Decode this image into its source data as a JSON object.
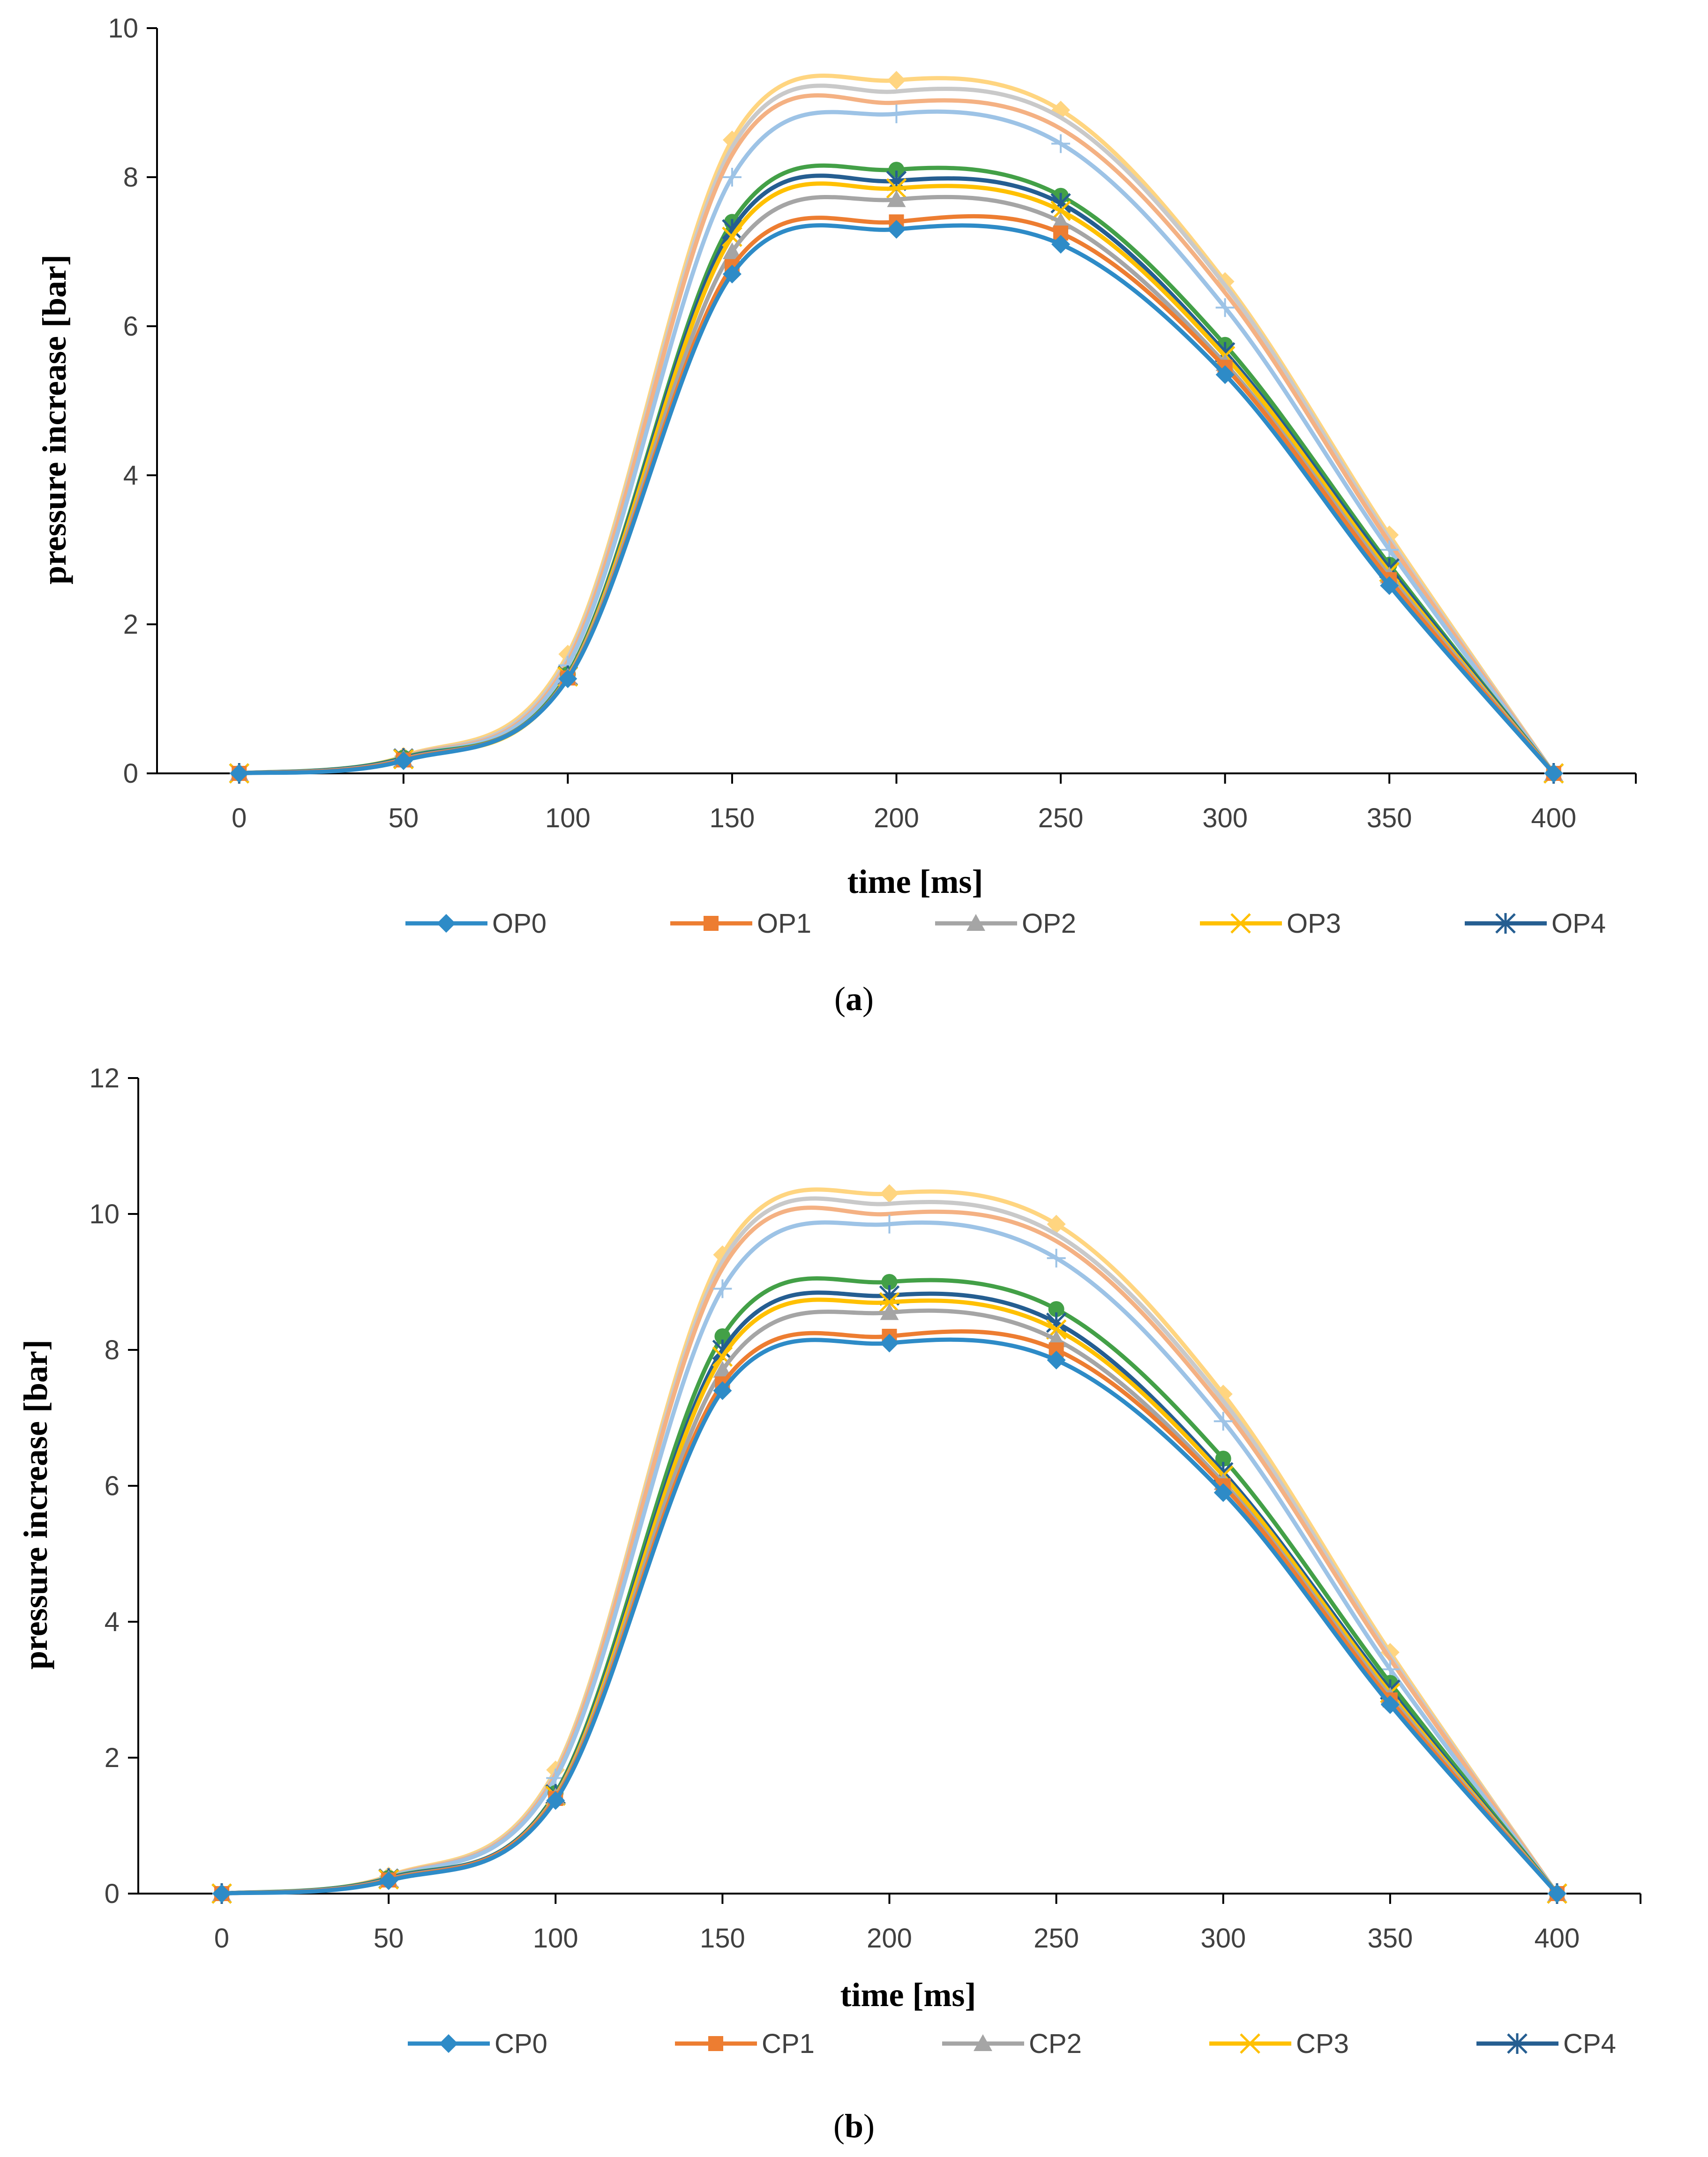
{
  "chart_data": [
    {
      "type": "line",
      "panel_label": "a",
      "xlabel": "time [ms]",
      "ylabel": "pressure increase [bar]",
      "xlim": [
        -25,
        425
      ],
      "ylim": [
        0,
        10
      ],
      "x_ticks": [
        "0",
        "50",
        "100",
        "150",
        "200",
        "250",
        "300",
        "350",
        "400"
      ],
      "y_ticks": [
        "0",
        "2",
        "4",
        "6",
        "8",
        "10"
      ],
      "x": [
        0,
        50,
        100,
        150,
        200,
        250,
        300,
        350,
        400
      ],
      "legend_position": "bottom",
      "legend": [
        "OP0",
        "OP1",
        "OP2",
        "OP3",
        "OP4"
      ],
      "series": [
        {
          "name": "OP0",
          "color": "#2E8BC7",
          "marker": "diamond",
          "values": [
            0,
            0.17,
            1.27,
            6.7,
            7.3,
            7.1,
            5.35,
            2.52,
            0
          ]
        },
        {
          "name": "OP1",
          "color": "#ED7D31",
          "marker": "square",
          "values": [
            0,
            0.18,
            1.28,
            6.8,
            7.4,
            7.25,
            5.45,
            2.6,
            0
          ]
        },
        {
          "name": "OP2",
          "color": "#A5A5A5",
          "marker": "triangle",
          "values": [
            0,
            0.19,
            1.29,
            7.0,
            7.7,
            7.4,
            5.5,
            2.65,
            0
          ]
        },
        {
          "name": "OP3",
          "color": "#FFC000",
          "marker": "x",
          "values": [
            0,
            0.19,
            1.3,
            7.2,
            7.85,
            7.55,
            5.6,
            2.7,
            0
          ]
        },
        {
          "name": "OP4",
          "color": "#255E91",
          "marker": "star",
          "values": [
            0,
            0.2,
            1.31,
            7.3,
            7.95,
            7.65,
            5.65,
            2.75,
            0
          ]
        },
        {
          "color": "#43A047",
          "marker": "circle",
          "values": [
            0,
            0.21,
            1.33,
            7.4,
            8.1,
            7.75,
            5.75,
            2.8,
            0
          ]
        },
        {
          "color": "#9DC3E6",
          "marker": "plus",
          "values": [
            0,
            0.21,
            1.45,
            8.0,
            8.85,
            8.45,
            6.25,
            3.0,
            0
          ]
        },
        {
          "color": "#F4B183",
          "marker": "none",
          "values": [
            0,
            0.22,
            1.5,
            8.3,
            9.0,
            8.65,
            6.45,
            3.1,
            0
          ]
        },
        {
          "color": "#C9C9C9",
          "marker": "none",
          "values": [
            0,
            0.22,
            1.55,
            8.4,
            9.15,
            8.8,
            6.55,
            3.15,
            0
          ]
        },
        {
          "color": "#FFD580",
          "marker": "diamond",
          "values": [
            0,
            0.23,
            1.6,
            8.5,
            9.3,
            8.9,
            6.6,
            3.2,
            0
          ]
        }
      ]
    },
    {
      "type": "line",
      "panel_label": "b",
      "xlabel": "time [ms]",
      "ylabel": "pressure increase [bar]",
      "xlim": [
        -25,
        425
      ],
      "ylim": [
        0,
        12
      ],
      "x_ticks": [
        "0",
        "50",
        "100",
        "150",
        "200",
        "250",
        "300",
        "350",
        "400"
      ],
      "y_ticks": [
        "0",
        "2",
        "4",
        "6",
        "8",
        "10",
        "12"
      ],
      "x": [
        0,
        50,
        100,
        150,
        200,
        250,
        300,
        350,
        400
      ],
      "legend_position": "bottom",
      "legend": [
        "CP0",
        "CP1",
        "CP2",
        "CP3",
        "CP4"
      ],
      "series": [
        {
          "name": "CP0",
          "color": "#2E8BC7",
          "marker": "diamond",
          "values": [
            0,
            0.19,
            1.37,
            7.4,
            8.1,
            7.85,
            5.9,
            2.78,
            0
          ]
        },
        {
          "name": "CP1",
          "color": "#ED7D31",
          "marker": "square",
          "values": [
            0,
            0.2,
            1.4,
            7.5,
            8.2,
            8.0,
            6.0,
            2.85,
            0
          ]
        },
        {
          "name": "CP2",
          "color": "#A5A5A5",
          "marker": "triangle",
          "values": [
            0,
            0.21,
            1.42,
            7.7,
            8.55,
            8.15,
            6.05,
            2.9,
            0
          ]
        },
        {
          "name": "CP3",
          "color": "#FFC000",
          "marker": "x",
          "values": [
            0,
            0.21,
            1.44,
            7.9,
            8.7,
            8.3,
            6.15,
            2.95,
            0
          ]
        },
        {
          "name": "CP4",
          "color": "#255E91",
          "marker": "star",
          "values": [
            0,
            0.22,
            1.46,
            8.0,
            8.8,
            8.4,
            6.2,
            3.0,
            0
          ]
        },
        {
          "color": "#43A047",
          "marker": "circle",
          "values": [
            0,
            0.23,
            1.48,
            8.2,
            9.0,
            8.6,
            6.4,
            3.1,
            0
          ]
        },
        {
          "color": "#9DC3E6",
          "marker": "plus",
          "values": [
            0,
            0.24,
            1.7,
            8.9,
            9.85,
            9.35,
            6.95,
            3.3,
            0
          ]
        },
        {
          "color": "#F4B183",
          "marker": "none",
          "values": [
            0,
            0.25,
            1.75,
            9.2,
            10.0,
            9.6,
            7.15,
            3.45,
            0
          ]
        },
        {
          "color": "#C9C9C9",
          "marker": "none",
          "values": [
            0,
            0.25,
            1.78,
            9.3,
            10.15,
            9.7,
            7.25,
            3.5,
            0
          ]
        },
        {
          "color": "#FFD580",
          "marker": "diamond",
          "values": [
            0,
            0.26,
            1.82,
            9.4,
            10.3,
            9.85,
            7.35,
            3.55,
            0
          ]
        }
      ]
    }
  ]
}
